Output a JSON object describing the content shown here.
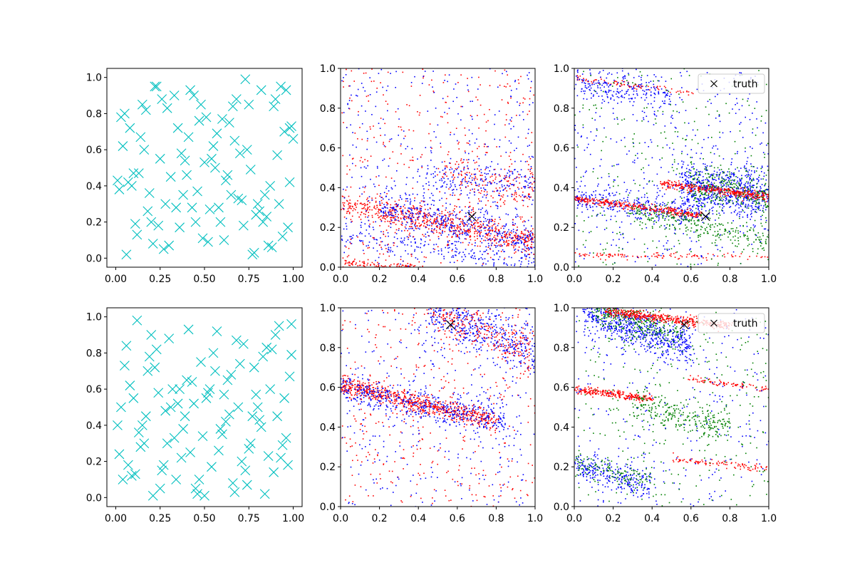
{
  "chart_data": [
    {
      "type": "scatter",
      "marker": "x",
      "color": "#00bfbf",
      "xlim": [
        -0.05,
        1.05
      ],
      "ylim": [
        -0.05,
        1.05
      ],
      "xticks": [
        "0.00",
        "0.25",
        "0.50",
        "0.75",
        "1.00"
      ],
      "yticks": [
        "0.0",
        "0.2",
        "0.4",
        "0.6",
        "0.8",
        "1.0"
      ],
      "x": [
        0.02,
        0.05,
        0.08,
        0.1,
        0.12,
        0.15,
        0.18,
        0.2,
        0.22,
        0.25,
        0.28,
        0.3,
        0.33,
        0.35,
        0.38,
        0.4,
        0.42,
        0.45,
        0.48,
        0.5,
        0.52,
        0.55,
        0.58,
        0.6,
        0.62,
        0.65,
        0.68,
        0.7,
        0.72,
        0.75,
        0.78,
        0.8,
        0.82,
        0.85,
        0.88,
        0.9,
        0.92,
        0.95,
        0.98,
        1.0,
        0.03,
        0.07,
        0.11,
        0.16,
        0.21,
        0.26,
        0.31,
        0.36,
        0.41,
        0.46,
        0.51,
        0.56,
        0.61,
        0.66,
        0.71,
        0.76,
        0.81,
        0.86,
        0.91,
        0.96,
        0.04,
        0.09,
        0.14,
        0.19,
        0.24,
        0.29,
        0.34,
        0.39,
        0.44,
        0.49,
        0.54,
        0.59,
        0.64,
        0.69,
        0.74,
        0.79,
        0.84,
        0.89,
        0.94,
        0.99,
        0.06,
        0.13,
        0.23,
        0.37,
        0.43,
        0.57,
        0.63,
        0.77,
        0.83,
        0.97,
        0.01,
        0.17,
        0.27,
        0.47,
        0.53,
        0.67,
        0.73,
        0.87,
        0.93,
        0.98
      ],
      "y": [
        0.38,
        0.8,
        0.72,
        0.47,
        0.13,
        0.85,
        0.26,
        0.2,
        0.95,
        0.55,
        0.3,
        0.07,
        0.9,
        0.72,
        0.35,
        0.46,
        0.93,
        0.2,
        0.85,
        0.53,
        0.09,
        0.62,
        0.28,
        0.77,
        0.43,
        0.35,
        0.88,
        0.58,
        0.18,
        0.85,
        0.03,
        0.3,
        0.93,
        0.23,
        0.06,
        0.88,
        0.3,
        0.7,
        0.42,
        0.66,
        0.78,
        0.42,
        0.19,
        0.6,
        0.08,
        0.88,
        0.45,
        0.17,
        0.67,
        0.37,
        0.78,
        0.5,
        0.1,
        0.84,
        0.32,
        0.49,
        0.26,
        0.07,
        0.57,
        0.93,
        0.62,
        0.4,
        0.67,
        0.36,
        0.18,
        0.83,
        0.28,
        0.54,
        0.9,
        0.11,
        0.55,
        0.2,
        0.75,
        0.33,
        0.6,
        0.24,
        0.35,
        0.84,
        0.12,
        0.73,
        0.02,
        0.47,
        0.95,
        0.58,
        0.28,
        0.69,
        0.46,
        0.02,
        0.2,
        0.17,
        0.43,
        0.82,
        0.05,
        0.76,
        0.27,
        0.65,
        0.99,
        0.4,
        0.95,
        0.72
      ]
    },
    {
      "type": "scatter",
      "marker": "dot",
      "xlim": [
        0,
        1
      ],
      "ylim": [
        0,
        1
      ],
      "xticks": [
        "0.0",
        "0.2",
        "0.4",
        "0.6",
        "0.8",
        "1.0"
      ],
      "yticks": [
        "0.0",
        "0.2",
        "0.4",
        "0.6",
        "0.8",
        "1.0"
      ],
      "bands": [
        {
          "color": "#ff0000",
          "x": [
            0.0,
            1.0
          ],
          "y": [
            0.32,
            0.13
          ],
          "spread": 0.035,
          "count": 700,
          "seed": 11
        },
        {
          "color": "#0000ff",
          "x": [
            0.2,
            1.0
          ],
          "y": [
            0.31,
            0.14
          ],
          "spread": 0.05,
          "count": 450,
          "seed": 12
        },
        {
          "color": "#ff0000",
          "x": [
            0.5,
            1.0
          ],
          "y": [
            0.46,
            0.39
          ],
          "spread": 0.05,
          "count": 160,
          "seed": 13
        },
        {
          "color": "#0000ff",
          "x": [
            0.4,
            1.0
          ],
          "y": [
            0.46,
            0.42
          ],
          "spread": 0.05,
          "count": 200,
          "seed": 14
        },
        {
          "color": "#ff0000",
          "x": [
            0.0,
            0.4
          ],
          "y": [
            0.02,
            0.0
          ],
          "spread": 0.012,
          "count": 120,
          "seed": 15
        },
        {
          "color": "#0000ff",
          "x": [
            0.0,
            1.0
          ],
          "y": [
            0.16,
            0.02
          ],
          "spread": 0.03,
          "count": 180,
          "seed": 16
        },
        {
          "color": "#ff0000",
          "x": [
            0.0,
            1.0
          ],
          "y": [
            0.0,
            1.0
          ],
          "spread": 0,
          "uniform": true,
          "count": 360,
          "seed": 17
        },
        {
          "color": "#0000ff",
          "x": [
            0.0,
            1.0
          ],
          "y": [
            0.0,
            1.0
          ],
          "spread": 0,
          "uniform": true,
          "count": 360,
          "seed": 18
        }
      ],
      "truth": {
        "x": 0.675,
        "y": 0.255
      }
    },
    {
      "type": "scatter",
      "marker": "dot",
      "xlim": [
        0,
        1
      ],
      "ylim": [
        0,
        1
      ],
      "xticks": [
        "0.0",
        "0.2",
        "0.4",
        "0.6",
        "0.8",
        "1.0"
      ],
      "yticks": [
        "0.0",
        "0.2",
        "0.4",
        "0.6",
        "0.8",
        "1.0"
      ],
      "legend": {
        "label": "truth",
        "position": "upper right"
      },
      "bands": [
        {
          "color": "#0000ff",
          "x": [
            0.55,
            1.0
          ],
          "y": [
            0.42,
            0.36
          ],
          "spread": 0.06,
          "count": 650,
          "seed": 21
        },
        {
          "color": "#008000",
          "x": [
            0.6,
            1.0
          ],
          "y": [
            0.42,
            0.36
          ],
          "spread": 0.05,
          "count": 300,
          "seed": 22
        },
        {
          "color": "#0000ff",
          "x": [
            0.0,
            0.7
          ],
          "y": [
            0.35,
            0.26
          ],
          "spread": 0.035,
          "count": 320,
          "seed": 23
        },
        {
          "color": "#ff0000",
          "x": [
            0.0,
            0.65
          ],
          "y": [
            0.345,
            0.26
          ],
          "spread": 0.01,
          "count": 330,
          "seed": 24
        },
        {
          "color": "#ff0000",
          "x": [
            0.45,
            1.0
          ],
          "y": [
            0.42,
            0.355
          ],
          "spread": 0.01,
          "count": 320,
          "seed": 25
        },
        {
          "color": "#008000",
          "x": [
            0.3,
            1.0
          ],
          "y": [
            0.28,
            0.13
          ],
          "spread": 0.03,
          "count": 260,
          "seed": 26
        },
        {
          "color": "#ff0000",
          "x": [
            0.0,
            1.0
          ],
          "y": [
            0.06,
            0.05
          ],
          "spread": 0.008,
          "count": 110,
          "seed": 27
        },
        {
          "color": "#ff0000",
          "x": [
            0.0,
            0.6
          ],
          "y": [
            0.95,
            0.88
          ],
          "spread": 0.008,
          "count": 90,
          "seed": 28
        },
        {
          "color": "#0000ff",
          "x": [
            0.0,
            0.5
          ],
          "y": [
            0.93,
            0.85
          ],
          "spread": 0.04,
          "count": 200,
          "seed": 29
        },
        {
          "color": "#0000ff",
          "x": [
            0.0,
            1.0
          ],
          "y": [
            0.0,
            1.0
          ],
          "spread": 0,
          "uniform": true,
          "count": 420,
          "seed": 30
        },
        {
          "color": "#008000",
          "x": [
            0.0,
            1.0
          ],
          "y": [
            0.0,
            1.0
          ],
          "spread": 0,
          "uniform": true,
          "count": 280,
          "seed": 31
        }
      ],
      "truth": {
        "x": 0.675,
        "y": 0.255
      }
    },
    {
      "type": "scatter",
      "marker": "x",
      "color": "#00bfbf",
      "xlim": [
        -0.05,
        1.05
      ],
      "ylim": [
        -0.05,
        1.05
      ],
      "xticks": [
        "0.00",
        "0.25",
        "0.50",
        "0.75",
        "1.00"
      ],
      "yticks": [
        "0.0",
        "0.2",
        "0.4",
        "0.6",
        "0.8",
        "1.0"
      ],
      "x": [
        0.03,
        0.06,
        0.09,
        0.12,
        0.15,
        0.18,
        0.21,
        0.24,
        0.27,
        0.3,
        0.33,
        0.36,
        0.39,
        0.42,
        0.45,
        0.48,
        0.51,
        0.54,
        0.57,
        0.6,
        0.63,
        0.66,
        0.69,
        0.72,
        0.75,
        0.78,
        0.81,
        0.84,
        0.87,
        0.9,
        0.93,
        0.96,
        0.99,
        0.02,
        0.08,
        0.14,
        0.2,
        0.26,
        0.32,
        0.38,
        0.44,
        0.5,
        0.56,
        0.62,
        0.68,
        0.74,
        0.8,
        0.86,
        0.92,
        0.98,
        0.05,
        0.11,
        0.17,
        0.23,
        0.29,
        0.35,
        0.41,
        0.47,
        0.53,
        0.59,
        0.65,
        0.71,
        0.77,
        0.83,
        0.89,
        0.95,
        0.01,
        0.07,
        0.13,
        0.19,
        0.25,
        0.31,
        0.37,
        0.43,
        0.49,
        0.55,
        0.61,
        0.67,
        0.73,
        0.79,
        0.85,
        0.91,
        0.97,
        0.04,
        0.1,
        0.16,
        0.22,
        0.28,
        0.34,
        0.4,
        0.46,
        0.52,
        0.58,
        0.64,
        0.7,
        0.76,
        0.82,
        0.88,
        0.94,
        0.99
      ],
      "y": [
        0.5,
        0.84,
        0.12,
        0.98,
        0.4,
        0.7,
        0.01,
        0.58,
        0.18,
        0.88,
        0.33,
        0.6,
        0.45,
        0.25,
        0.05,
        0.75,
        0.55,
        0.17,
        0.92,
        0.35,
        0.65,
        0.08,
        0.5,
        0.85,
        0.27,
        0.72,
        0.43,
        0.02,
        0.6,
        0.9,
        0.22,
        0.33,
        0.79,
        0.24,
        0.62,
        0.28,
        0.9,
        0.15,
        0.6,
        0.38,
        0.52,
        0.01,
        0.7,
        0.42,
        0.87,
        0.07,
        0.5,
        0.23,
        0.95,
        0.67,
        0.73,
        0.13,
        0.45,
        0.82,
        0.3,
        0.52,
        0.93,
        0.1,
        0.6,
        0.38,
        0.68,
        0.2,
        0.45,
        0.78,
        0.14,
        0.55,
        0.4,
        0.18,
        0.36,
        0.78,
        0.05,
        0.5,
        0.22,
        0.64,
        0.34,
        0.8,
        0.57,
        0.03,
        0.15,
        0.57,
        0.83,
        0.45,
        0.18,
        0.1,
        0.55,
        0.3,
        0.72,
        0.48,
        0.1,
        0.65,
        0.02,
        0.58,
        0.26,
        0.46,
        0.74,
        0.3,
        0.39,
        0.82,
        0.29,
        0.96
      ]
    },
    {
      "type": "scatter",
      "marker": "dot",
      "xlim": [
        0,
        1
      ],
      "ylim": [
        0,
        1
      ],
      "xticks": [
        "0.0",
        "0.2",
        "0.4",
        "0.6",
        "0.8",
        "1.0"
      ],
      "yticks": [
        "0.0",
        "0.2",
        "0.4",
        "0.6",
        "0.8",
        "1.0"
      ],
      "bands": [
        {
          "color": "#ff0000",
          "x": [
            0.0,
            0.8
          ],
          "y": [
            0.61,
            0.43
          ],
          "spread": 0.025,
          "count": 700,
          "seed": 41
        },
        {
          "color": "#0000ff",
          "x": [
            0.0,
            0.85
          ],
          "y": [
            0.6,
            0.42
          ],
          "spread": 0.04,
          "count": 450,
          "seed": 42
        },
        {
          "color": "#0000ff",
          "x": [
            0.45,
            1.0
          ],
          "y": [
            1.0,
            0.78
          ],
          "spread": 0.06,
          "count": 420,
          "seed": 43
        },
        {
          "color": "#ff0000",
          "x": [
            0.45,
            1.0
          ],
          "y": [
            1.0,
            0.78
          ],
          "spread": 0.06,
          "count": 260,
          "seed": 44
        },
        {
          "color": "#ff0000",
          "x": [
            0.0,
            1.0
          ],
          "y": [
            0.0,
            1.0
          ],
          "spread": 0,
          "uniform": true,
          "count": 380,
          "seed": 45
        },
        {
          "color": "#0000ff",
          "x": [
            0.0,
            1.0
          ],
          "y": [
            0.0,
            1.0
          ],
          "spread": 0,
          "uniform": true,
          "count": 380,
          "seed": 46
        }
      ],
      "truth": {
        "x": 0.565,
        "y": 0.915
      }
    },
    {
      "type": "scatter",
      "marker": "dot",
      "xlim": [
        0,
        1
      ],
      "ylim": [
        0,
        1
      ],
      "xticks": [
        "0.0",
        "0.2",
        "0.4",
        "0.6",
        "0.8",
        "1.0"
      ],
      "yticks": [
        "0.0",
        "0.2",
        "0.4",
        "0.6",
        "0.8",
        "1.0"
      ],
      "legend": {
        "label": "truth",
        "position": "upper right"
      },
      "bands": [
        {
          "color": "#0000ff",
          "x": [
            0.05,
            0.6
          ],
          "y": [
            0.98,
            0.8
          ],
          "spread": 0.05,
          "count": 650,
          "seed": 51
        },
        {
          "color": "#008000",
          "x": [
            0.1,
            0.55
          ],
          "y": [
            0.99,
            0.86
          ],
          "spread": 0.04,
          "count": 280,
          "seed": 52
        },
        {
          "color": "#ff0000",
          "x": [
            0.15,
            0.8
          ],
          "y": [
            0.985,
            0.905
          ],
          "spread": 0.012,
          "count": 420,
          "seed": 53
        },
        {
          "color": "#ff0000",
          "x": [
            0.0,
            0.4
          ],
          "y": [
            0.59,
            0.54
          ],
          "spread": 0.01,
          "count": 260,
          "seed": 54
        },
        {
          "color": "#008000",
          "x": [
            0.3,
            0.8
          ],
          "y": [
            0.52,
            0.4
          ],
          "spread": 0.04,
          "count": 260,
          "seed": 55
        },
        {
          "color": "#ff0000",
          "x": [
            0.6,
            1.0
          ],
          "y": [
            0.64,
            0.59
          ],
          "spread": 0.008,
          "count": 80,
          "seed": 56
        },
        {
          "color": "#0000ff",
          "x": [
            0.0,
            0.4
          ],
          "y": [
            0.2,
            0.1
          ],
          "spread": 0.035,
          "count": 260,
          "seed": 57
        },
        {
          "color": "#008000",
          "x": [
            0.0,
            0.4
          ],
          "y": [
            0.2,
            0.12
          ],
          "spread": 0.03,
          "count": 120,
          "seed": 58
        },
        {
          "color": "#ff0000",
          "x": [
            0.5,
            1.0
          ],
          "y": [
            0.24,
            0.19
          ],
          "spread": 0.008,
          "count": 90,
          "seed": 59
        },
        {
          "color": "#0000ff",
          "x": [
            0.0,
            1.0
          ],
          "y": [
            0.0,
            1.0
          ],
          "spread": 0,
          "uniform": true,
          "count": 300,
          "seed": 60
        },
        {
          "color": "#008000",
          "x": [
            0.0,
            1.0
          ],
          "y": [
            0.0,
            1.0
          ],
          "spread": 0,
          "uniform": true,
          "count": 300,
          "seed": 61
        }
      ],
      "truth": {
        "x": 0.565,
        "y": 0.915
      }
    }
  ]
}
